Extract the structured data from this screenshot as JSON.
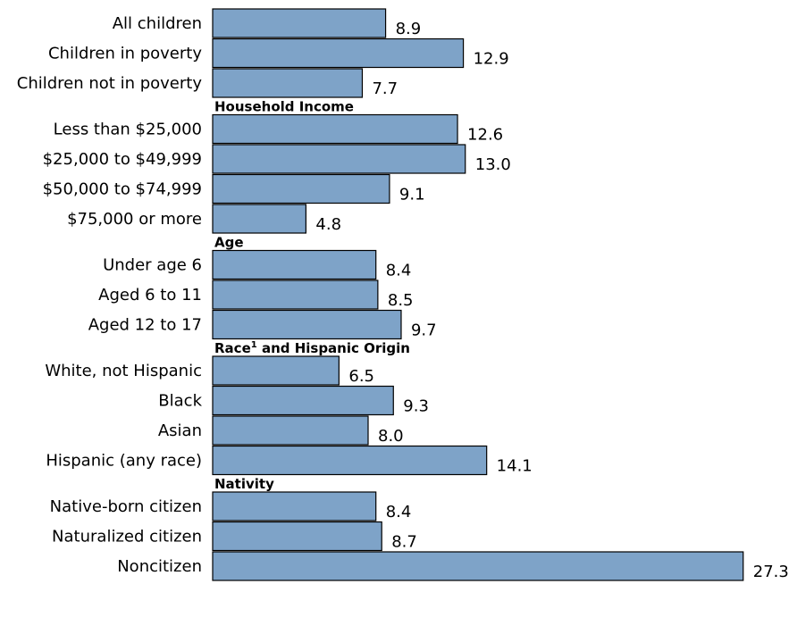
{
  "colors": {
    "bar_fill": "#7ea3c8",
    "bar_stroke": "#000000",
    "text": "#000000"
  },
  "chart_data": {
    "type": "bar",
    "orientation": "horizontal",
    "xlim": [
      0,
      27.3
    ],
    "grid": false,
    "groups": [
      {
        "header": "",
        "rows": [
          {
            "label": "All children",
            "value": 8.9,
            "value_text": "8.9"
          },
          {
            "label": "Children in poverty",
            "value": 12.9,
            "value_text": "12.9"
          },
          {
            "label": "Children not in poverty",
            "value": 7.7,
            "value_text": "7.7"
          }
        ]
      },
      {
        "header": "Household Income",
        "rows": [
          {
            "label": "Less than $25,000",
            "value": 12.6,
            "value_text": "12.6"
          },
          {
            "label": "$25,000 to $49,999",
            "value": 13.0,
            "value_text": "13.0"
          },
          {
            "label": "$50,000 to $74,999",
            "value": 9.1,
            "value_text": "9.1"
          },
          {
            "label": "$75,000 or more",
            "value": 4.8,
            "value_text": "4.8"
          }
        ]
      },
      {
        "header": "Age",
        "rows": [
          {
            "label": "Under age 6",
            "value": 8.4,
            "value_text": "8.4"
          },
          {
            "label": "Aged 6 to 11",
            "value": 8.5,
            "value_text": "8.5"
          },
          {
            "label": "Aged 12 to 17",
            "value": 9.7,
            "value_text": "9.7"
          }
        ]
      },
      {
        "header": "Race",
        "header_sup": "1",
        "header_rest": " and Hispanic Origin",
        "rows": [
          {
            "label": "White, not Hispanic",
            "value": 6.5,
            "value_text": "6.5"
          },
          {
            "label": "Black",
            "value": 9.3,
            "value_text": "9.3"
          },
          {
            "label": "Asian",
            "value": 8.0,
            "value_text": "8.0"
          },
          {
            "label": "Hispanic (any race)",
            "value": 14.1,
            "value_text": "14.1"
          }
        ]
      },
      {
        "header": "Nativity",
        "rows": [
          {
            "label": "Native-born citizen",
            "value": 8.4,
            "value_text": "8.4"
          },
          {
            "label": "Naturalized citizen",
            "value": 8.7,
            "value_text": "8.7"
          },
          {
            "label": "Noncitizen",
            "value": 27.3,
            "value_text": "27.3"
          }
        ]
      }
    ]
  }
}
